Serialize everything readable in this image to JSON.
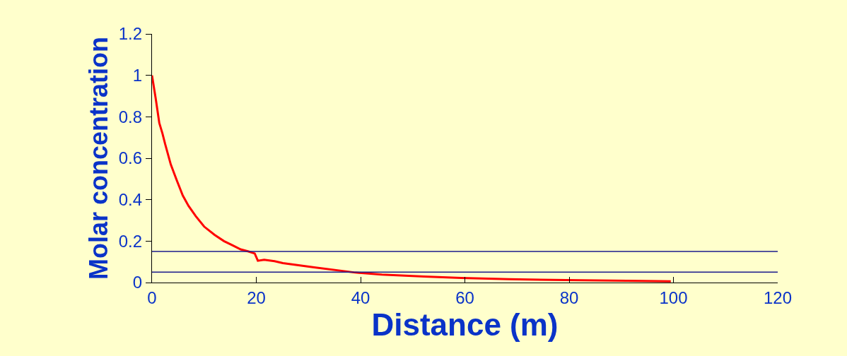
{
  "chart_data": {
    "type": "line",
    "xlabel": "Distance (m)",
    "ylabel": "Molar concentration",
    "xlim": [
      0,
      120
    ],
    "xticks": [
      0,
      20,
      40,
      60,
      80,
      100,
      120
    ],
    "ylim": [
      0,
      1.2
    ],
    "yticks": [
      0,
      0.2,
      0.4,
      0.6,
      0.8,
      1,
      1.2
    ],
    "grid": false,
    "marker": "none",
    "line_style": "solid",
    "series": [
      {
        "color": "#ff0000",
        "x": [
          0,
          0.7,
          1.4,
          2,
          2.5,
          3.6,
          4.8,
          5.9,
          7,
          8.4,
          10,
          12,
          13.8,
          15.4,
          17,
          18.5,
          19.7,
          20.3,
          21.5,
          23.5,
          25.1,
          31.1,
          38.7,
          44.1,
          52.2,
          59.3,
          68.5,
          82.1,
          94,
          99.5
        ],
        "values": [
          1.0,
          0.89,
          0.77,
          0.72,
          0.67,
          0.57,
          0.49,
          0.42,
          0.37,
          0.32,
          0.27,
          0.23,
          0.2,
          0.18,
          0.16,
          0.15,
          0.14,
          0.105,
          0.11,
          0.103,
          0.094,
          0.073,
          0.049,
          0.038,
          0.029,
          0.022,
          0.016,
          0.011,
          0.008,
          0.006
        ]
      }
    ],
    "ref_lines": [
      {
        "axis": "y",
        "value": 0.15,
        "color": "#1a1a8c"
      },
      {
        "axis": "y",
        "value": 0.05,
        "color": "#1a1a8c"
      }
    ]
  }
}
